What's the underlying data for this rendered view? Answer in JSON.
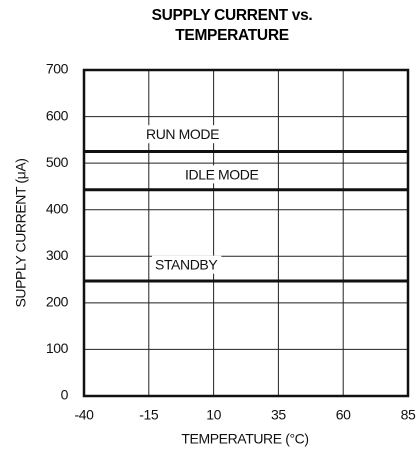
{
  "chart_data": {
    "type": "line",
    "title": "SUPPLY CURRENT vs. TEMPERATURE",
    "xlabel": "TEMPERATURE (°C)",
    "ylabel": "SUPPLY CURRENT (μA)",
    "x": [
      -40,
      85
    ],
    "series": [
      {
        "name": "RUN MODE",
        "color": "#111111",
        "values": [
          525,
          525
        ]
      },
      {
        "name": "IDLE MODE",
        "color": "#111111",
        "values": [
          443,
          443
        ]
      },
      {
        "name": "STANDBY",
        "color": "#111111",
        "values": [
          247,
          247
        ]
      }
    ],
    "xlim": [
      -40,
      85
    ],
    "xticks": [
      -40,
      -15,
      10,
      35,
      60,
      85
    ],
    "ylim": [
      0,
      700
    ],
    "yticks": [
      0,
      100,
      200,
      300,
      400,
      500,
      600,
      700
    ],
    "grid": true
  }
}
